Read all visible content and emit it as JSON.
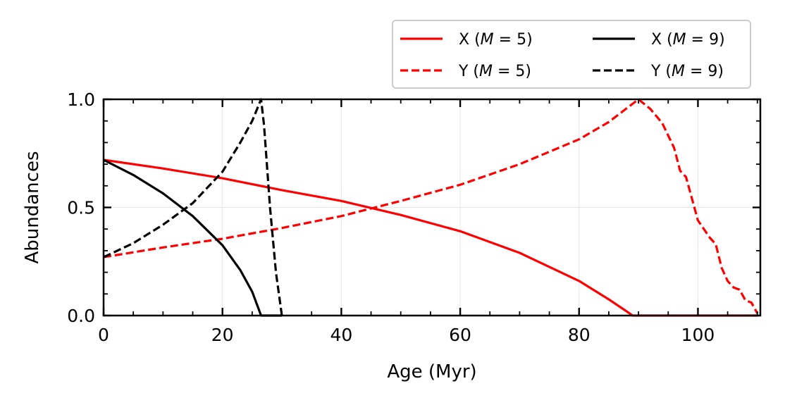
{
  "chart_data": {
    "type": "line",
    "xlabel": "Age (Myr)",
    "ylabel": "Abundances",
    "xlim": [
      0,
      110.5
    ],
    "ylim": [
      0,
      1.0
    ],
    "xticks": [
      0,
      20,
      40,
      60,
      80,
      100
    ],
    "xtick_labels": [
      "0",
      "20",
      "40",
      "60",
      "80",
      "100"
    ],
    "yticks": [
      0,
      0.5,
      1.0
    ],
    "ytick_labels": [
      "0.0",
      "0.5",
      "1.0"
    ],
    "grid": true,
    "legend": {
      "placement": "above-top-right",
      "columns": 2
    },
    "series": [
      {
        "name": "X (M = 5)",
        "color": "#ff0000",
        "style": "solid",
        "x": [
          0,
          10,
          20,
          30,
          40,
          50,
          60,
          70,
          80,
          85,
          88.5,
          89,
          100,
          110
        ],
        "y": [
          0.72,
          0.68,
          0.635,
          0.58,
          0.53,
          0.465,
          0.39,
          0.29,
          0.16,
          0.075,
          0.01,
          0.0,
          0.0,
          0.0
        ]
      },
      {
        "name": "Y (M = 5)",
        "color": "#ff0000",
        "style": "dashed",
        "x": [
          0,
          10,
          20,
          30,
          40,
          45,
          50,
          60,
          70,
          80,
          85,
          90,
          92,
          94,
          96,
          97,
          98,
          99,
          100,
          102,
          103,
          104,
          105,
          106,
          107,
          108,
          109,
          110
        ],
        "y": [
          0.27,
          0.315,
          0.355,
          0.405,
          0.46,
          0.495,
          0.53,
          0.605,
          0.7,
          0.815,
          0.895,
          1.0,
          0.955,
          0.89,
          0.775,
          0.67,
          0.64,
          0.54,
          0.44,
          0.36,
          0.33,
          0.22,
          0.16,
          0.13,
          0.12,
          0.07,
          0.06,
          0.01
        ]
      },
      {
        "name": "X (M = 9)",
        "color": "#000000",
        "style": "solid",
        "x": [
          0,
          5,
          10,
          15,
          20,
          23,
          25,
          26.5,
          27,
          30
        ],
        "y": [
          0.72,
          0.65,
          0.565,
          0.46,
          0.325,
          0.21,
          0.11,
          0.0,
          0.0,
          0.0
        ]
      },
      {
        "name": "Y (M = 9)",
        "color": "#000000",
        "style": "dashed",
        "x": [
          0,
          5,
          10,
          15,
          20,
          23,
          25,
          26.5,
          27,
          28,
          29,
          30
        ],
        "y": [
          0.27,
          0.335,
          0.42,
          0.52,
          0.665,
          0.8,
          0.9,
          1.0,
          0.88,
          0.5,
          0.2,
          0.0
        ]
      }
    ]
  },
  "legend_entries": [
    {
      "base": "X",
      "mass": "5",
      "color": "#ff0000",
      "dash": false
    },
    {
      "base": "Y",
      "mass": "5",
      "color": "#ff0000",
      "dash": true
    },
    {
      "base": "X",
      "mass": "9",
      "color": "#000000",
      "dash": false
    },
    {
      "base": "Y",
      "mass": "9",
      "color": "#000000",
      "dash": true
    }
  ]
}
